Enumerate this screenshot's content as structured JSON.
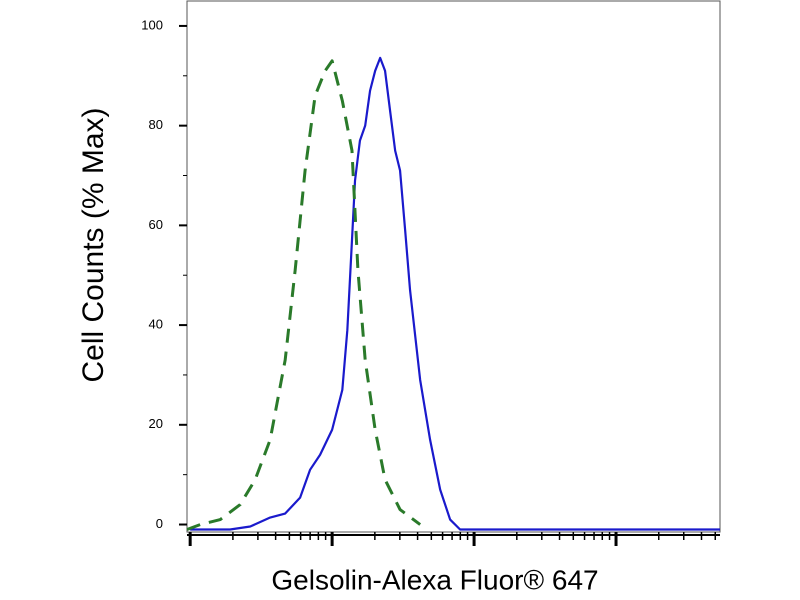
{
  "chart_data": {
    "type": "line",
    "xlabel": "Gelsolin-Alexa Fluor® 647",
    "ylabel": "Cell Counts (% Max)",
    "xscale": "log",
    "xlim": [
      0.95,
      5400
    ],
    "xticks": [
      1,
      10,
      100,
      1000
    ],
    "xminorticks": [
      2,
      3,
      4,
      5,
      6,
      7,
      8,
      9,
      20,
      30,
      40,
      50,
      60,
      70,
      80,
      90,
      200,
      300,
      400,
      500,
      600,
      700,
      800,
      900,
      2000,
      3000,
      4000,
      5000
    ],
    "ylim": [
      -1.5,
      105
    ],
    "yticks": [
      0,
      20,
      40,
      60,
      80,
      100
    ],
    "yminorticks": [
      10,
      30,
      50,
      70,
      90
    ],
    "series": [
      {
        "color": "#1a1acc",
        "dash": false,
        "x": [
          1,
          1.91,
          2.65,
          3.66,
          4.67,
          5.95,
          7.0,
          8.23,
          10,
          11.8,
          12.8,
          13.8,
          14.5,
          15.7,
          17.1,
          18.5,
          20.1,
          21.8,
          23.6,
          25.6,
          27.8,
          30.1,
          32.7,
          35.4,
          41.7,
          49,
          57.7,
          67.8,
          79.7,
          5400
        ],
        "values": [
          -1,
          -1,
          -0.4,
          1.4,
          2.2,
          5.4,
          11,
          14,
          19,
          27,
          39,
          57,
          69,
          77,
          80,
          87,
          91,
          93.6,
          91,
          83,
          75,
          71,
          59,
          47,
          29,
          17,
          7,
          1,
          -1,
          -1
        ]
      },
      {
        "color": "#2a7a2a",
        "dash": true,
        "x": [
          0.95,
          1.18,
          1.63,
          2.25,
          2.87,
          3.66,
          4.67,
          5.49,
          6.45,
          7.59,
          8.93,
          10.0,
          11.8,
          13.8,
          15.2,
          17.1,
          20.1,
          23.6,
          30.1,
          41.7
        ],
        "values": [
          -1,
          0,
          1,
          4,
          9,
          17,
          33,
          51,
          71,
          86,
          91,
          93,
          85,
          75,
          51,
          33,
          19,
          9,
          3,
          0
        ]
      }
    ]
  }
}
